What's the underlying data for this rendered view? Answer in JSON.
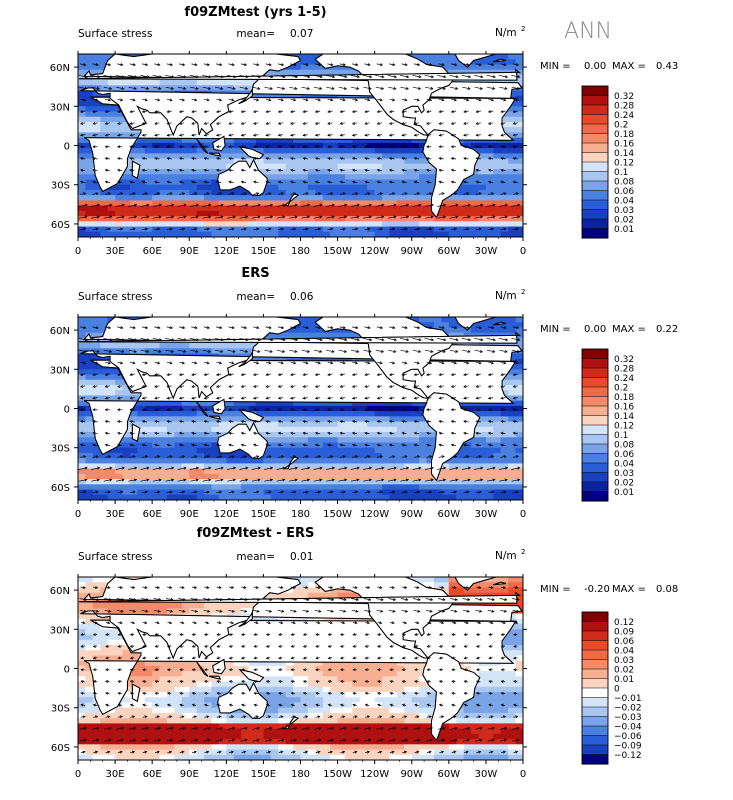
{
  "season": "ANN",
  "chart_data": [
    {
      "type": "heatmap",
      "title": "f09ZMtest (yrs 1-5)",
      "left_label": "Surface stress",
      "mean_label": "mean=",
      "mean_value": "0.07",
      "units": "N/m",
      "units_exp": "2",
      "min_label": "MIN =",
      "min_value": "0.00",
      "max_label": "MAX =",
      "max_value": "0.43",
      "x_ticks": [
        "0",
        "30E",
        "60E",
        "90E",
        "120E",
        "150E",
        "180",
        "150W",
        "120W",
        "90W",
        "60W",
        "30W",
        "0"
      ],
      "y_ticks": [
        "60N",
        "30N",
        "0",
        "30S",
        "60S"
      ],
      "y_tick_values": [
        60,
        30,
        0,
        -30,
        -60
      ],
      "ylim": [
        -70,
        70
      ],
      "xlim": [
        0,
        360
      ],
      "colorbar_levels": [
        "0.32",
        "0.28",
        "0.24",
        "0.2",
        "0.18",
        "0.16",
        "0.14",
        "0.12",
        "0.1",
        "0.08",
        "0.06",
        "0.04",
        "0.03",
        "0.02",
        "0.01"
      ],
      "mode": "abs"
    },
    {
      "type": "heatmap",
      "title": "ERS",
      "left_label": "Surface stress",
      "mean_label": "mean=",
      "mean_value": "0.06",
      "units": "N/m",
      "units_exp": "2",
      "min_label": "MIN =",
      "min_value": "0.00",
      "max_label": "MAX =",
      "max_value": "0.22",
      "x_ticks": [
        "0",
        "30E",
        "60E",
        "90E",
        "120E",
        "150E",
        "180",
        "150W",
        "120W",
        "90W",
        "60W",
        "30W",
        "0"
      ],
      "y_ticks": [
        "60N",
        "30N",
        "0",
        "30S",
        "60S"
      ],
      "y_tick_values": [
        60,
        30,
        0,
        -30,
        -60
      ],
      "ylim": [
        -70,
        70
      ],
      "xlim": [
        0,
        360
      ],
      "colorbar_levels": [
        "0.32",
        "0.28",
        "0.24",
        "0.2",
        "0.18",
        "0.16",
        "0.14",
        "0.12",
        "0.1",
        "0.08",
        "0.06",
        "0.04",
        "0.03",
        "0.02",
        "0.01"
      ],
      "mode": "obs"
    },
    {
      "type": "heatmap",
      "title": "f09ZMtest - ERS",
      "left_label": "Surface stress",
      "mean_label": "mean=",
      "mean_value": "0.01",
      "units": "N/m",
      "units_exp": "2",
      "min_label": "MIN =",
      "min_value": "-0.20",
      "max_label": "MAX =",
      "max_value": "0.08",
      "x_ticks": [
        "0",
        "30E",
        "60E",
        "90E",
        "120E",
        "150E",
        "180",
        "150W",
        "120W",
        "90W",
        "60W",
        "30W",
        "0"
      ],
      "y_ticks": [
        "60N",
        "30N",
        "0",
        "30S",
        "60S"
      ],
      "y_tick_values": [
        60,
        30,
        0,
        -30,
        -60
      ],
      "ylim": [
        -70,
        70
      ],
      "xlim": [
        0,
        360
      ],
      "colorbar_levels": [
        "0.12",
        "0.09",
        "0.06",
        "0.04",
        "0.03",
        "0.02",
        "0.01",
        "0",
        "−0.01",
        "−0.02",
        "−0.03",
        "−0.04",
        "−0.06",
        "−0.09",
        "−0.12"
      ],
      "mode": "diff"
    }
  ],
  "colors": {
    "abs": [
      "#800000",
      "#b01010",
      "#d02a1a",
      "#e84a2a",
      "#f06a48",
      "#f48a6a",
      "#f8ae90",
      "#fbd4c0",
      "#d4e4f8",
      "#a8c6f0",
      "#7aa4e8",
      "#4a80e0",
      "#2a5ed8",
      "#1840c0",
      "#0c22a0",
      "#000080"
    ],
    "diff": [
      "#800000",
      "#b01010",
      "#d02a1a",
      "#e84a2a",
      "#f06a48",
      "#f48a6a",
      "#f8ae90",
      "#fbd4c0",
      "#ffffff",
      "#d4e4f8",
      "#a8c6f0",
      "#7aa4e8",
      "#4a80e0",
      "#2a5ed8",
      "#1840c0",
      "#000080"
    ]
  }
}
